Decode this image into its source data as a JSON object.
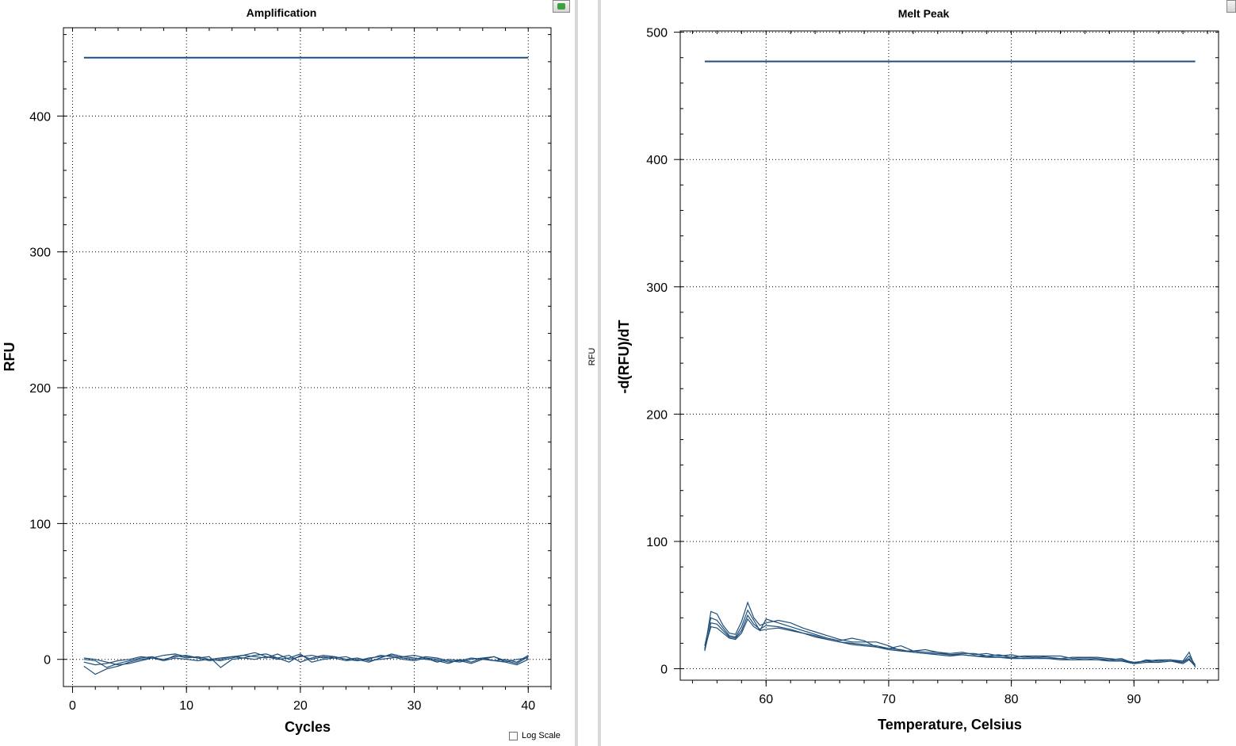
{
  "chart_data": [
    {
      "type": "line",
      "title": "Amplification",
      "xlabel": "Cycles",
      "ylabel": "RFU",
      "xlim": [
        -0.8,
        42
      ],
      "ylim": [
        -20,
        465
      ],
      "xticks": [
        0,
        10,
        20,
        30,
        40
      ],
      "yticks": [
        0,
        100,
        200,
        300,
        400
      ],
      "grid": true,
      "line_color": "#1f4e79",
      "threshold": {
        "value": 443,
        "x": [
          1,
          40
        ]
      },
      "series": [
        {
          "x": [
            1,
            2,
            3,
            4,
            5,
            6,
            7,
            8,
            9,
            10,
            11,
            12,
            13,
            14,
            15,
            16,
            17,
            18,
            19,
            20,
            21,
            22,
            23,
            24,
            25,
            26,
            27,
            28,
            29,
            30,
            31,
            32,
            33,
            34,
            35,
            36,
            37,
            38,
            39,
            40
          ],
          "values": [
            0,
            -1,
            -6,
            -3,
            -1,
            1,
            2,
            -1,
            3,
            1,
            2,
            0,
            -1,
            1,
            3,
            2,
            1,
            4,
            0,
            2,
            3,
            1,
            2,
            0,
            -1,
            1,
            2,
            3,
            1,
            0,
            2,
            1,
            -1,
            -2,
            0,
            1,
            -1,
            -2,
            0,
            1
          ]
        },
        {
          "x": [
            1,
            2,
            3,
            4,
            5,
            6,
            7,
            8,
            9,
            10,
            11,
            12,
            13,
            14,
            15,
            16,
            17,
            18,
            19,
            20,
            21,
            22,
            23,
            24,
            25,
            26,
            27,
            28,
            29,
            30,
            31,
            32,
            33,
            34,
            35,
            36,
            37,
            38,
            39,
            40
          ],
          "values": [
            -2,
            -4,
            -3,
            -1,
            0,
            2,
            1,
            0,
            2,
            3,
            1,
            2,
            -6,
            0,
            1,
            3,
            4,
            1,
            -2,
            3,
            0,
            2,
            1,
            -1,
            0,
            -2,
            1,
            4,
            2,
            1,
            0,
            -1,
            -3,
            0,
            -2,
            1,
            2,
            -1,
            -3,
            2
          ]
        },
        {
          "x": [
            1,
            2,
            3,
            4,
            5,
            6,
            7,
            8,
            9,
            10,
            11,
            12,
            13,
            14,
            15,
            16,
            17,
            18,
            19,
            20,
            21,
            22,
            23,
            24,
            25,
            26,
            27,
            28,
            29,
            30,
            31,
            32,
            33,
            34,
            35,
            36,
            37,
            38,
            39,
            40
          ],
          "values": [
            -5,
            -11,
            -7,
            -5,
            -2,
            0,
            1,
            -1,
            1,
            0,
            -1,
            0,
            1,
            2,
            1,
            0,
            2,
            1,
            3,
            -2,
            1,
            3,
            2,
            0,
            1,
            -1,
            0,
            1,
            2,
            3,
            1,
            -2,
            0,
            -1,
            -3,
            0,
            2,
            -2,
            -4,
            0
          ]
        },
        {
          "x": [
            1,
            2,
            3,
            4,
            5,
            6,
            7,
            8,
            9,
            10,
            11,
            12,
            13,
            14,
            15,
            16,
            17,
            18,
            19,
            20,
            21,
            22,
            23,
            24,
            25,
            26,
            27,
            28,
            29,
            30,
            31,
            32,
            33,
            34,
            35,
            36,
            37,
            38,
            39,
            40
          ],
          "values": [
            1,
            0,
            -2,
            -4,
            -3,
            -1,
            1,
            3,
            4,
            2,
            1,
            -1,
            0,
            2,
            3,
            5,
            2,
            0,
            1,
            4,
            -2,
            0,
            1,
            2,
            -1,
            0,
            3,
            2,
            0,
            -1,
            1,
            0,
            -2,
            -1,
            1,
            0,
            -1,
            0,
            -2,
            3
          ]
        }
      ]
    },
    {
      "type": "line",
      "title": "Melt Peak",
      "xlabel": "Temperature, Celsius",
      "ylabel": "-d(RFU)/dT",
      "xlim": [
        53,
        96.9
      ],
      "ylim": [
        -9,
        501
      ],
      "xticks": [
        60,
        70,
        80,
        90
      ],
      "yticks": [
        0,
        100,
        200,
        300,
        400,
        500
      ],
      "grid": true,
      "line_color": "#1f4e79",
      "threshold": {
        "value": 477,
        "x": [
          55,
          95
        ]
      },
      "series": [
        {
          "x": [
            55,
            55.5,
            56,
            56.5,
            57,
            57.5,
            58,
            58.5,
            59,
            59.5,
            60,
            61,
            62,
            63,
            64,
            65,
            66,
            67,
            68,
            69,
            70,
            71,
            72,
            73,
            74,
            75,
            76,
            77,
            78,
            79,
            80,
            81,
            82,
            83,
            84,
            85,
            86,
            87,
            88,
            89,
            90,
            91,
            92,
            93,
            94,
            94.5,
            95
          ],
          "values": [
            15,
            45,
            43,
            34,
            28,
            27,
            37,
            52,
            40,
            34,
            36,
            38,
            36,
            32,
            29,
            26,
            23,
            21,
            21,
            21,
            18,
            14,
            14,
            15,
            13,
            12,
            13,
            11,
            12,
            10,
            11,
            9,
            10,
            10,
            10,
            8,
            9,
            9,
            8,
            7,
            5,
            6,
            7,
            7,
            6,
            13,
            1
          ]
        },
        {
          "x": [
            55,
            55.5,
            56,
            56.5,
            57,
            57.5,
            58,
            58.5,
            59,
            59.5,
            60,
            61,
            62,
            63,
            64,
            65,
            66,
            67,
            68,
            69,
            70,
            71,
            72,
            73,
            74,
            75,
            76,
            77,
            78,
            79,
            80,
            81,
            82,
            83,
            84,
            85,
            86,
            87,
            88,
            89,
            90,
            91,
            92,
            93,
            94,
            94.5,
            95
          ],
          "values": [
            18,
            40,
            38,
            32,
            26,
            25,
            33,
            46,
            38,
            30,
            39,
            36,
            33,
            30,
            27,
            24,
            22,
            24,
            22,
            17,
            16,
            18,
            14,
            13,
            13,
            11,
            12,
            12,
            10,
            11,
            9,
            10,
            10,
            9,
            8,
            9,
            9,
            8,
            7,
            8,
            4,
            7,
            6,
            7,
            5,
            10,
            3
          ]
        },
        {
          "x": [
            55,
            55.5,
            56,
            56.5,
            57,
            57.5,
            58,
            58.5,
            59,
            59.5,
            60,
            61,
            62,
            63,
            64,
            65,
            66,
            67,
            68,
            69,
            70,
            71,
            72,
            73,
            74,
            75,
            76,
            77,
            78,
            79,
            80,
            81,
            82,
            83,
            84,
            85,
            86,
            87,
            88,
            89,
            90,
            91,
            92,
            93,
            94,
            94.5,
            95
          ],
          "values": [
            14,
            36,
            35,
            30,
            25,
            24,
            30,
            42,
            35,
            31,
            34,
            33,
            31,
            28,
            26,
            23,
            21,
            20,
            19,
            18,
            16,
            15,
            13,
            12,
            12,
            11,
            11,
            10,
            10,
            9,
            9,
            8,
            9,
            8,
            8,
            7,
            8,
            7,
            7,
            6,
            5,
            6,
            5,
            6,
            5,
            8,
            2
          ]
        },
        {
          "x": [
            55,
            55.5,
            56,
            56.5,
            57,
            57.5,
            58,
            58.5,
            59,
            59.5,
            60,
            61,
            62,
            63,
            64,
            65,
            66,
            67,
            68,
            69,
            70,
            71,
            72,
            73,
            74,
            75,
            76,
            77,
            78,
            79,
            80,
            81,
            82,
            83,
            84,
            85,
            86,
            87,
            88,
            89,
            90,
            91,
            92,
            93,
            94,
            94.5,
            95
          ],
          "values": [
            16,
            33,
            32,
            28,
            24,
            23,
            28,
            39,
            33,
            30,
            31,
            32,
            30,
            28,
            25,
            23,
            21,
            19,
            18,
            17,
            15,
            14,
            13,
            12,
            11,
            10,
            11,
            10,
            9,
            9,
            8,
            8,
            8,
            8,
            7,
            7,
            7,
            7,
            6,
            6,
            4,
            5,
            5,
            6,
            4,
            7,
            2
          ]
        }
      ]
    }
  ],
  "controls": {
    "log_scale_label": "Log Scale",
    "log_scale_checked": false
  },
  "hidden_panel_label": "RFU"
}
